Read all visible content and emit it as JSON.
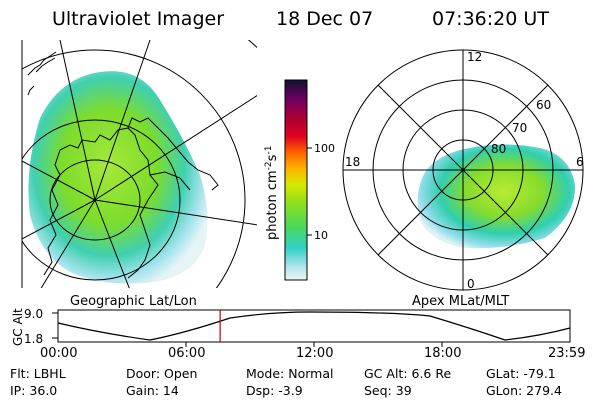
{
  "header": {
    "instrument": "Ultraviolet Imager",
    "date": "18 Dec 07",
    "time": "07:36:20 UT"
  },
  "left_panel": {
    "label": "Geographic Lat/Lon"
  },
  "right_panel": {
    "label": "Apex MLat/MLT",
    "mlt_labels": [
      "12",
      "18",
      "6",
      "0"
    ],
    "lat_labels": [
      "60",
      "70",
      "80"
    ]
  },
  "colorbar": {
    "unit_label": "photon cm",
    "unit_sup1": "-2",
    "unit_mid": "s",
    "unit_sup2": "-1",
    "tick_labels": [
      "100",
      "10"
    ],
    "scale": "log"
  },
  "altitude_plot": {
    "ylabel": "GC Alt",
    "y_ticks": [
      "9.0",
      "1.8"
    ],
    "x_ticks": [
      "00:00",
      "06:00",
      "12:00",
      "18:00",
      "23:59"
    ],
    "marker_time_hours": 7.6,
    "marker_color": "#c00000"
  },
  "info": {
    "filter": "Flt: LBHL",
    "ip": "IP: 36.0",
    "door": "Door: Open",
    "gain": "Gain: 14",
    "mode": "Mode: Normal",
    "dsp": "Dsp:   -3.9",
    "gc_alt": "GC Alt: 6.6 Re",
    "seq": "Seq: 39",
    "glat": "GLat: -79.1",
    "glon": "GLon: 279.4"
  }
}
